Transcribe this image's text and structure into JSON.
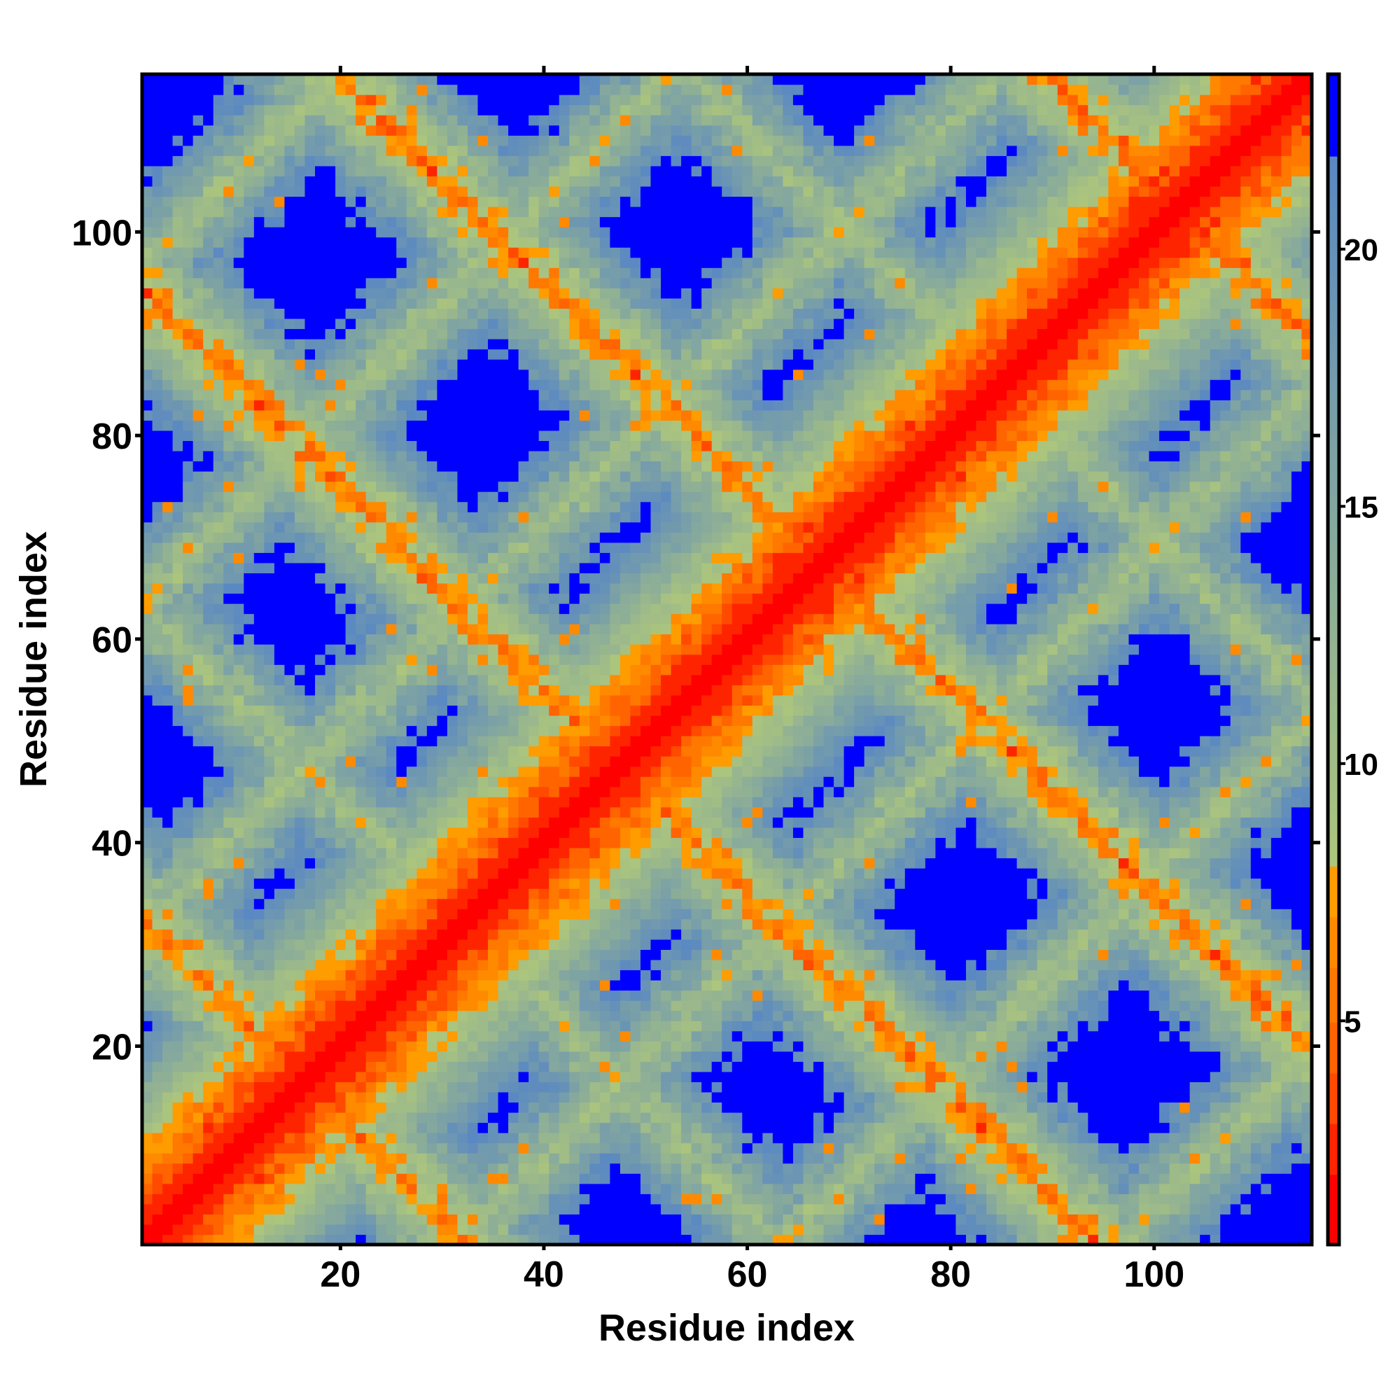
{
  "chart_data": {
    "type": "heatmap",
    "title": "",
    "xlabel": "Residue index",
    "ylabel": "Residue index",
    "n_residues": 115,
    "xlim": [
      0.5,
      115.5
    ],
    "ylim": [
      0.5,
      115.5
    ],
    "x_ticks": [
      20,
      40,
      60,
      80,
      100
    ],
    "y_ticks": [
      20,
      40,
      60,
      80,
      100
    ],
    "x_tick_labels": [
      "20",
      "40",
      "60",
      "80",
      "100"
    ],
    "y_tick_labels": [
      "20",
      "40",
      "60",
      "80",
      "100"
    ],
    "colorbar": {
      "range": [
        0.65,
        23.4
      ],
      "ticks": [
        5,
        10,
        15,
        20
      ],
      "tick_labels": [
        "5",
        "10",
        "15",
        "20"
      ],
      "bins": [
        {
          "from": 0,
          "to": 2,
          "color": "#ff0000"
        },
        {
          "from": 2,
          "to": 3,
          "color": "#ff2400"
        },
        {
          "from": 3,
          "to": 4,
          "color": "#ff4a00"
        },
        {
          "from": 4,
          "to": 5,
          "color": "#ff6400"
        },
        {
          "from": 5,
          "to": 6,
          "color": "#ff7800"
        },
        {
          "from": 6,
          "to": 7,
          "color": "#ff8a00"
        },
        {
          "from": 7,
          "to": 8,
          "color": "#ff9c00"
        }
      ],
      "gradient": {
        "from": 8,
        "to": 21.8,
        "color_low": "#adc67c",
        "color_high": "#5a88c2"
      },
      "above_color": "#0000ff"
    },
    "value_model": {
      "note": "approximate pairwise residue distance (Å) pattern",
      "diagonal_core": 1.0,
      "bands": [
        {
          "kind": "sum",
          "offset": 33,
          "core": 5.5
        },
        {
          "kind": "sum",
          "offset": 64,
          "core": 10
        },
        {
          "kind": "sum",
          "offset": 95,
          "core": 5.5
        },
        {
          "kind": "sum",
          "offset": 135,
          "core": 5.5
        },
        {
          "kind": "sum",
          "offset": 170,
          "core": 10
        },
        {
          "kind": "sum",
          "offset": 205,
          "core": 5.5
        },
        {
          "kind": "diff",
          "offset": 31,
          "core": 10
        },
        {
          "kind": "diff",
          "offset": 63,
          "core": 10
        },
        {
          "kind": "diff",
          "offset": 96,
          "core": 10
        }
      ]
    }
  }
}
